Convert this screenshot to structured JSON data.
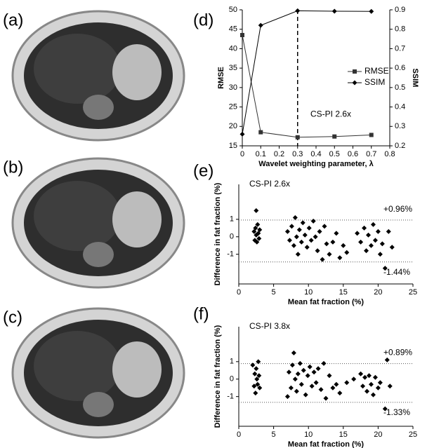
{
  "image_labels": [
    "(a)",
    "(b)",
    "(c)"
  ],
  "chart_data": [
    {
      "type": "line",
      "panel_label": "(d)",
      "x_label": "Wavelet weighting parameter, λ",
      "y_label": "RMSE",
      "y2_label": "SSIM",
      "annotation": "CS-PI 2.6x",
      "vline": 0.3,
      "legend": "right",
      "x": [
        0,
        0.1,
        0.3,
        0.5,
        0.7
      ],
      "xlim": [
        0,
        0.8
      ],
      "xticks": [
        0,
        0.1,
        0.2,
        0.3,
        0.4,
        0.5,
        0.6,
        0.7,
        0.8
      ],
      "ylim": [
        15,
        50
      ],
      "yticks": [
        15,
        20,
        25,
        30,
        35,
        40,
        45,
        50
      ],
      "y2lim": [
        0.2,
        0.9
      ],
      "y2ticks": [
        0.2,
        0.3,
        0.4,
        0.5,
        0.6,
        0.7,
        0.8,
        0.9
      ],
      "series": [
        {
          "name": "RMSE",
          "color": "#333333",
          "marker": "square",
          "values": [
            43.5,
            18.5,
            17.2,
            17.4,
            17.8
          ]
        },
        {
          "name": "SSIM",
          "color": "#000000",
          "marker": "diamond",
          "axis": "y2",
          "values": [
            0.26,
            0.82,
            0.895,
            0.893,
            0.892
          ]
        }
      ]
    },
    {
      "type": "scatter",
      "panel_label": "(e)",
      "x_label": "Mean fat fraction (%)",
      "y_label": "Difference in fat fraction (%)",
      "annotation": "CS-PI 2.6x",
      "color": "#000000",
      "hlines": [
        {
          "value": 0.96,
          "label": "+0.96%"
        },
        {
          "value": -1.44,
          "label": "-1.44%"
        }
      ],
      "xlim": [
        0,
        25
      ],
      "xticks": [
        0,
        5,
        10,
        15,
        20,
        25
      ],
      "ylim": [
        -2.7,
        3
      ],
      "yticks": [
        -1,
        0,
        1
      ],
      "x": [
        2.2,
        2.3,
        2.4,
        2.5,
        2.6,
        2.7,
        2.8,
        2.9,
        2.5,
        3.0,
        7.0,
        7.3,
        7.6,
        7.9,
        8.1,
        8.3,
        8.5,
        8.7,
        9.0,
        9.2,
        9.5,
        9.8,
        10.1,
        10.4,
        10.7,
        11.0,
        11.3,
        11.6,
        12.0,
        12.3,
        12.6,
        13.0,
        13.5,
        14.0,
        14.5,
        15.0,
        15.5,
        17.0,
        17.5,
        18.0,
        18.3,
        18.6,
        19.0,
        19.3,
        19.6,
        20.0,
        20.3,
        20.6,
        21.0,
        21.5,
        22.0
      ],
      "values": [
        0.3,
        -0.2,
        0.5,
        0.1,
        -0.3,
        0.7,
        0.2,
        -0.1,
        1.5,
        0.4,
        0.3,
        -0.2,
        0.6,
        -0.5,
        1.1,
        0.0,
        -1.0,
        0.4,
        -0.3,
        0.8,
        0.1,
        -0.6,
        0.5,
        -0.2,
        0.9,
        0.0,
        -0.8,
        0.3,
        -1.3,
        0.6,
        -0.4,
        -1.0,
        -0.3,
        0.2,
        -1.2,
        -0.5,
        -0.9,
        0.2,
        -0.3,
        0.5,
        -0.8,
        0.1,
        -0.5,
        0.7,
        -0.2,
        0.3,
        -1.0,
        -0.4,
        -1.8,
        0.3,
        -0.6
      ]
    },
    {
      "type": "scatter",
      "panel_label": "(f)",
      "x_label": "Mean fat fraction (%)",
      "y_label": "Difference in fat fraction (%)",
      "annotation": "CS-PI 3.8x",
      "color": "#000000",
      "hlines": [
        {
          "value": 0.89,
          "label": "+0.89%"
        },
        {
          "value": -1.33,
          "label": "-1.33%"
        }
      ],
      "xlim": [
        0,
        25
      ],
      "xticks": [
        0,
        5,
        10,
        15,
        20,
        25
      ],
      "ylim": [
        -2.7,
        3
      ],
      "yticks": [
        -1,
        0,
        1
      ],
      "x": [
        2.0,
        2.2,
        2.3,
        2.4,
        2.5,
        2.6,
        2.7,
        2.8,
        2.9,
        3.0,
        7.0,
        7.2,
        7.5,
        7.7,
        7.9,
        8.1,
        8.3,
        8.5,
        8.8,
        9.0,
        9.3,
        9.6,
        9.9,
        10.2,
        10.5,
        10.8,
        11.1,
        11.4,
        11.8,
        12.2,
        12.5,
        13.0,
        13.5,
        14.0,
        14.5,
        15.5,
        16.5,
        17.5,
        17.8,
        18.1,
        18.4,
        18.7,
        19.0,
        19.3,
        19.6,
        20.0,
        20.3,
        21.0,
        21.3,
        21.7
      ],
      "values": [
        0.8,
        -0.4,
        0.3,
        -0.8,
        0.6,
        0.0,
        -0.3,
        1.0,
        0.2,
        -0.5,
        -1.0,
        0.4,
        -0.5,
        0.8,
        1.5,
        0.0,
        -0.7,
        0.3,
        0.9,
        -0.3,
        0.5,
        -0.9,
        0.2,
        0.7,
        -0.4,
        0.4,
        -0.2,
        0.6,
        -0.6,
        0.9,
        -1.1,
        0.2,
        -0.5,
        -0.3,
        -0.8,
        -0.2,
        0.0,
        0.3,
        -0.4,
        0.1,
        -0.7,
        0.2,
        -0.3,
        -0.9,
        0.1,
        -0.5,
        -0.2,
        -1.7,
        1.1,
        -0.4
      ]
    }
  ]
}
